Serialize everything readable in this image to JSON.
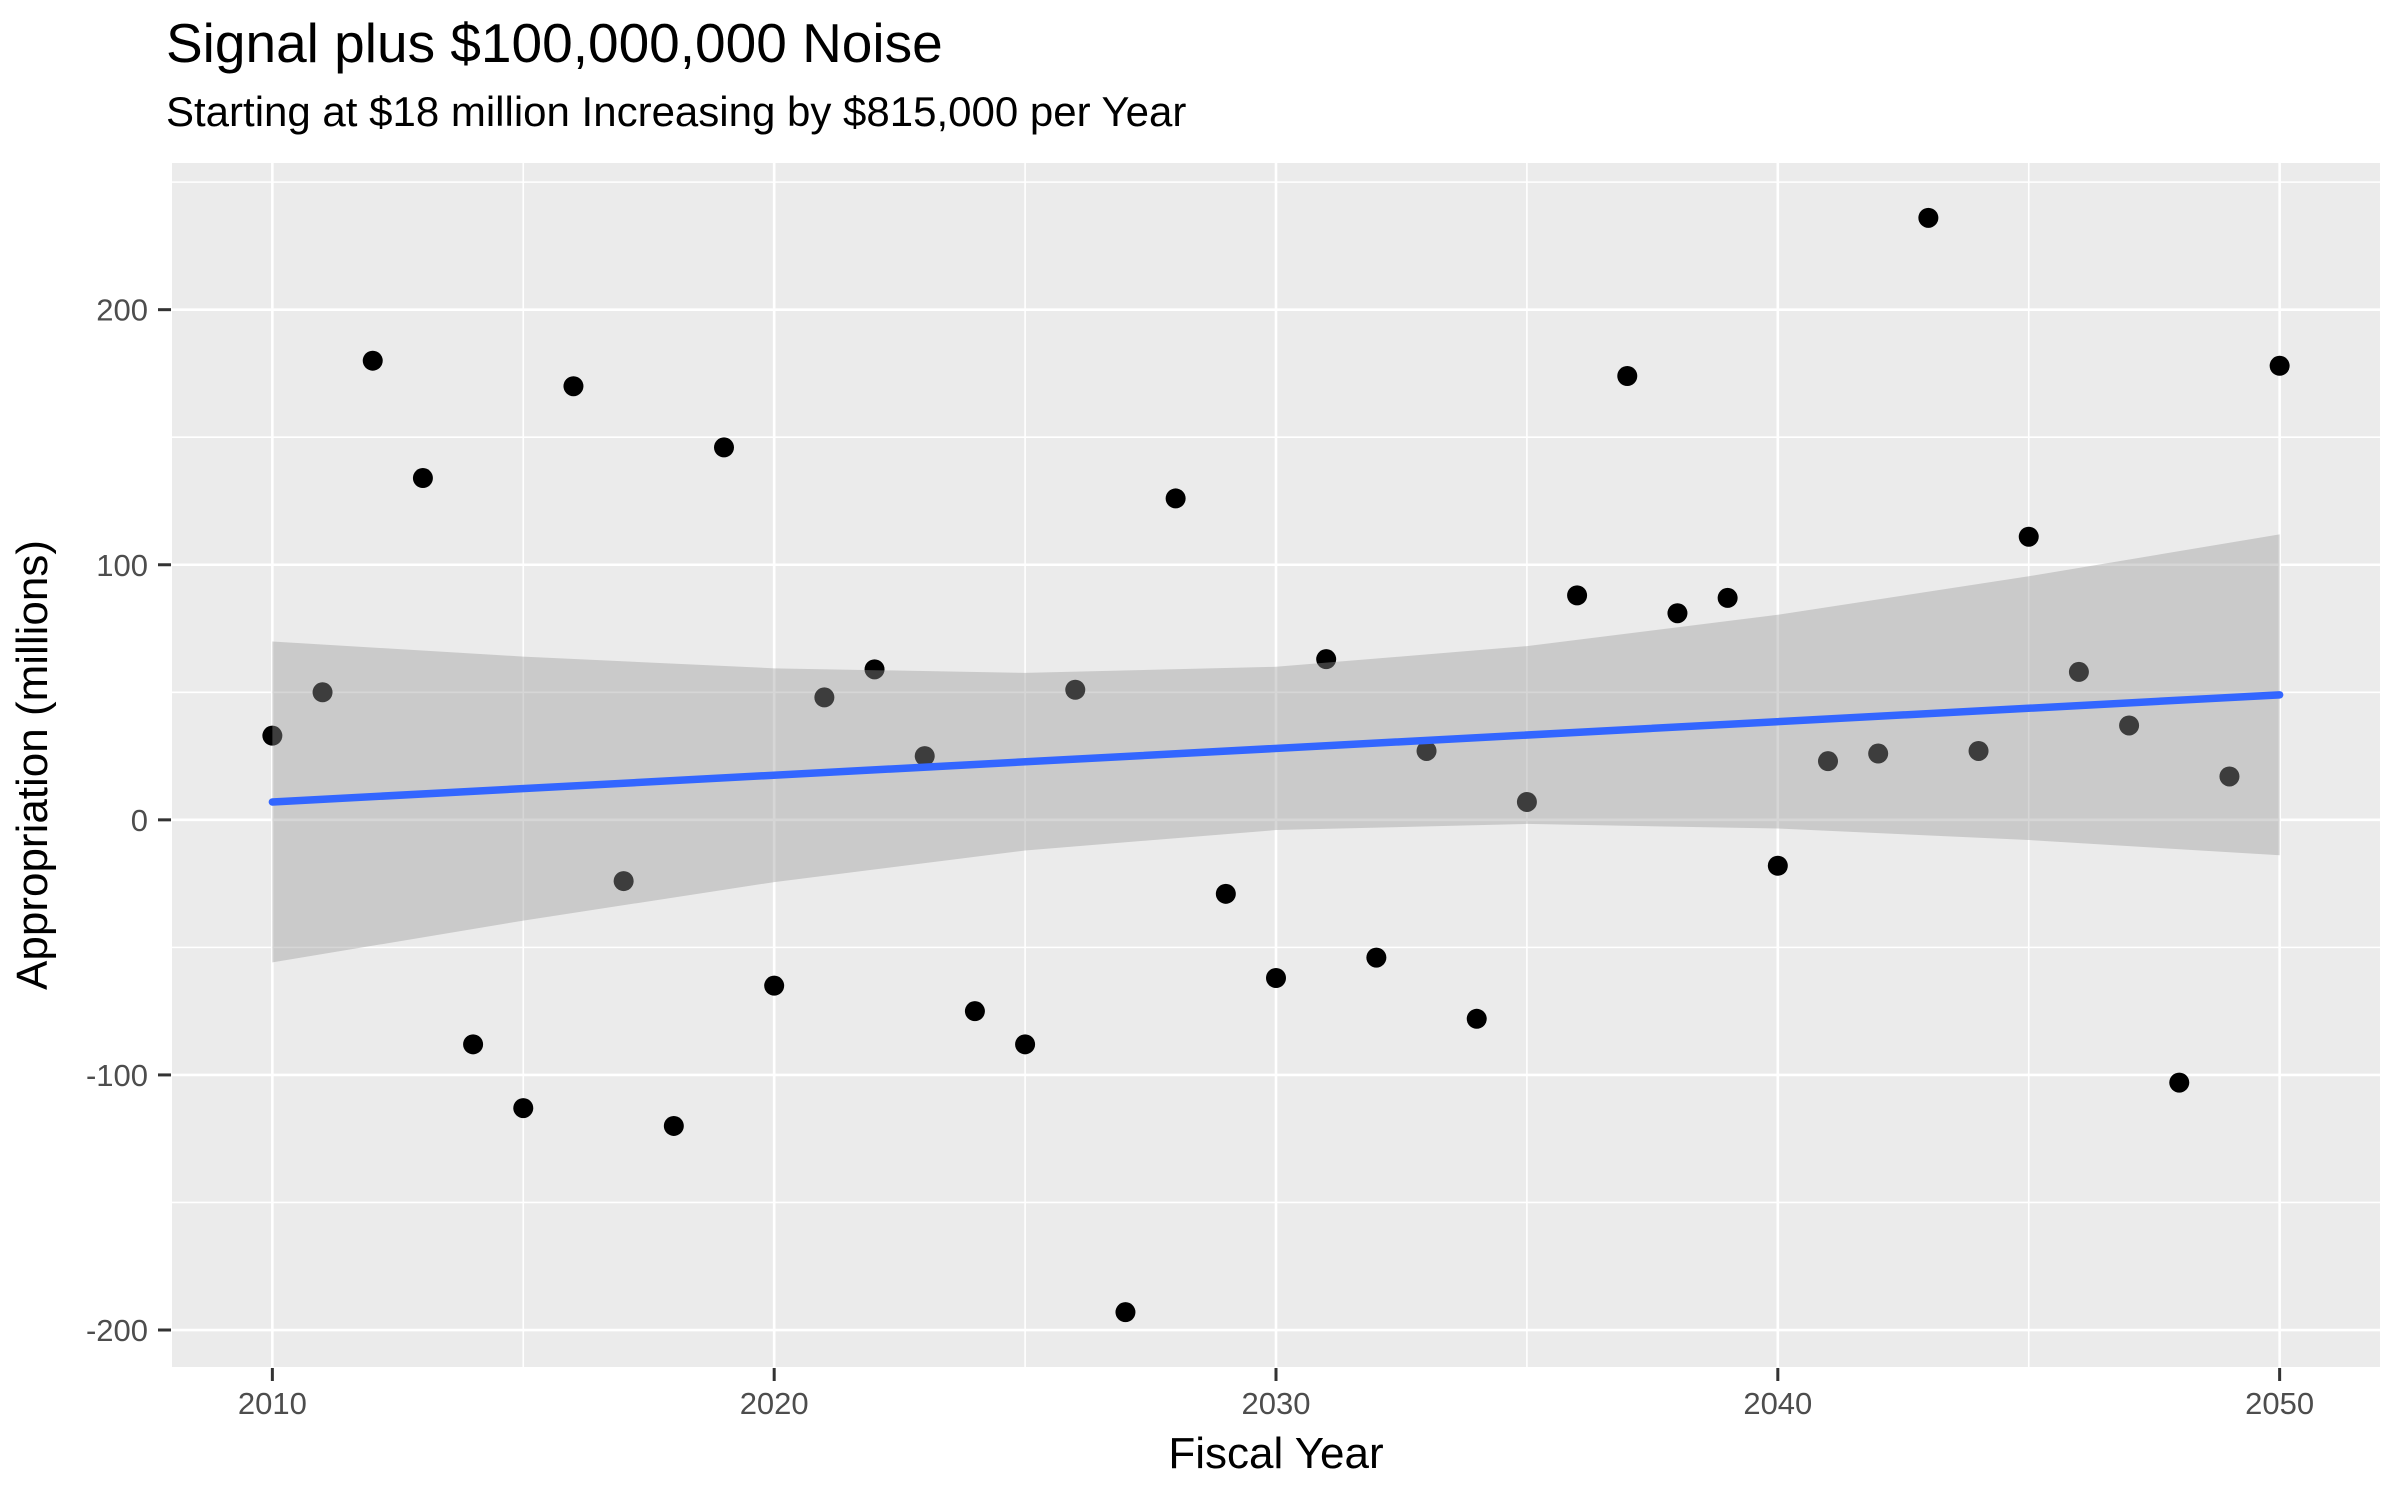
{
  "chart_data": {
    "type": "scatter",
    "title": "Signal plus $100,000,000 Noise",
    "subtitle": "Starting at $18 million Increasing by $815,000 per Year",
    "xlabel": "Fiscal Year",
    "ylabel": "Appropriation (millions)",
    "xlim": [
      2008,
      2052
    ],
    "ylim": [
      -214.5,
      257.5
    ],
    "grid": true,
    "legend_position": "none",
    "x_major_ticks": [
      2010,
      2020,
      2030,
      2040,
      2050
    ],
    "x_minor_ticks": [
      2015,
      2025,
      2035,
      2045
    ],
    "y_major_ticks": [
      -200,
      -100,
      0,
      100,
      200
    ],
    "y_minor_ticks": [
      -150,
      -50,
      50,
      150,
      250
    ],
    "points": {
      "x": [
        2010,
        2011,
        2012,
        2013,
        2014,
        2015,
        2016,
        2017,
        2018,
        2019,
        2020,
        2021,
        2022,
        2023,
        2024,
        2025,
        2026,
        2027,
        2028,
        2029,
        2030,
        2031,
        2032,
        2033,
        2034,
        2035,
        2036,
        2037,
        2038,
        2039,
        2040,
        2041,
        2042,
        2043,
        2044,
        2045,
        2046,
        2047,
        2048,
        2049,
        2050
      ],
      "y": [
        33,
        50,
        180,
        134,
        -88,
        -113,
        170,
        -24,
        -120,
        146,
        -65,
        48,
        59,
        25,
        -75,
        -88,
        51,
        -193,
        126,
        -29,
        -62,
        63,
        -54,
        27,
        -78,
        7,
        88,
        174,
        81,
        87,
        -18,
        23,
        26,
        236,
        27,
        111,
        58,
        37,
        -103,
        17,
        178
      ]
    },
    "trend_line": {
      "x": [
        2010,
        2050
      ],
      "y": [
        7,
        49
      ]
    },
    "ci_band": {
      "years": [
        2010,
        2015,
        2020,
        2025,
        2030,
        2035,
        2040,
        2045,
        2050
      ],
      "lower": [
        -55.9,
        -39.5,
        -24.4,
        -12.0,
        -4.0,
        -1.6,
        -3.4,
        -7.9,
        -13.9
      ],
      "upper": [
        69.9,
        64.0,
        59.4,
        57.6,
        60.0,
        68.1,
        80.4,
        95.5,
        111.9
      ]
    },
    "colors": {
      "panel_background": "#EBEBEB",
      "gridline": "#FFFFFF",
      "point": "#000000",
      "trend_line": "#3366FF",
      "ci_band": "#999999",
      "ci_band_alpha": 0.4,
      "tick_text": "#4D4D4D",
      "tick_mark": "#333333",
      "title_text": "#000000"
    }
  }
}
